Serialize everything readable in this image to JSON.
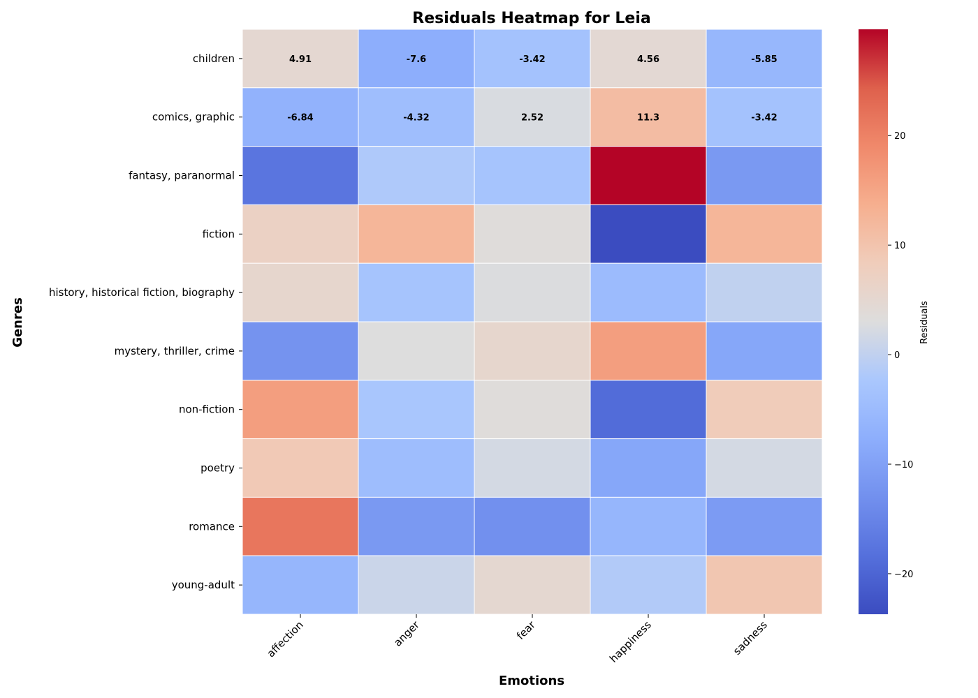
{
  "chart_data": {
    "type": "heatmap",
    "title": "Residuals Heatmap for Leia",
    "xlabel": "Emotions",
    "ylabel": "Genres",
    "colorbar_label": "Residuals",
    "colormap": "coolwarm",
    "vmin": -23.7,
    "vmax": 29.7,
    "colorbar_ticks": [
      -20,
      -10,
      0,
      10,
      20
    ],
    "columns": [
      "affection",
      "anger",
      "fear",
      "happiness",
      "sadness"
    ],
    "rows": [
      "children",
      "comics, graphic",
      "fantasy, paranormal",
      "fiction",
      "history, historical fiction, biography",
      "mystery, thriller, crime",
      "non-fiction",
      "poetry",
      "romance",
      "young-adult"
    ],
    "values": [
      [
        4.91,
        -7.6,
        -3.42,
        4.56,
        -5.85
      ],
      [
        -6.84,
        -4.32,
        2.52,
        11.3,
        -3.42
      ],
      [
        -17.5,
        -1.8,
        -3.0,
        29.7,
        -11.5
      ],
      [
        7.0,
        12.5,
        3.5,
        -23.7,
        12.5
      ],
      [
        5.5,
        -3.0,
        2.8,
        -5.0,
        0.0
      ],
      [
        -12.5,
        3.0,
        5.5,
        16.0,
        -9.0
      ],
      [
        16.0,
        -2.5,
        3.5,
        -19.0,
        8.5
      ],
      [
        9.0,
        -4.5,
        2.0,
        -9.0,
        2.0
      ],
      [
        21.5,
        -11.5,
        -13.0,
        -6.0,
        -11.0
      ],
      [
        -6.0,
        1.0,
        5.0,
        -1.5,
        9.5
      ]
    ],
    "annotated_rows": 2,
    "annotations": [
      [
        "4.91",
        "-7.6",
        "-3.42",
        "4.56",
        "-5.85"
      ],
      [
        "-6.84",
        "-4.32",
        "2.52",
        "11.3",
        "-3.42"
      ]
    ]
  }
}
